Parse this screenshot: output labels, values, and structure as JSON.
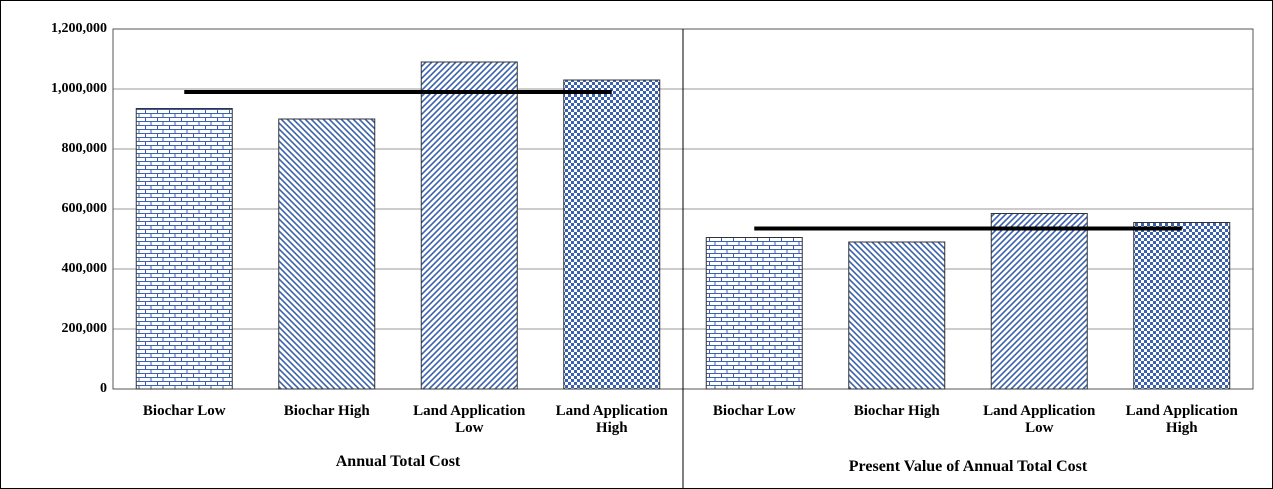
{
  "chart_data": {
    "type": "bar",
    "groups": [
      {
        "name": "Annual Total Cost",
        "categories": [
          "Biochar Low",
          "Biochar High",
          "Land Application Low",
          "Land Application High"
        ],
        "values": [
          935000,
          900000,
          1090000,
          1030000
        ],
        "line": 990000
      },
      {
        "name": "Present Value of Annual Total Cost",
        "categories": [
          "Biochar Low",
          "Biochar High",
          "Land Application Low",
          "Land Application High"
        ],
        "values": [
          505000,
          490000,
          585000,
          555000
        ],
        "line": 535000
      }
    ],
    "color": "#3a62b0",
    "ylim": [
      0,
      1200000
    ],
    "yticks": [
      0,
      {
        "value": 200000,
        "label": "200,000"
      },
      {
        "value": 400000,
        "label": "400,000"
      },
      {
        "value": 600000,
        "label": "600,000"
      },
      {
        "value": 800000,
        "label": "800,000"
      },
      {
        "value": 1000000,
        "label": "1,000,000"
      },
      {
        "value": 1200000,
        "label": "1,200,000"
      }
    ],
    "grid": true
  }
}
